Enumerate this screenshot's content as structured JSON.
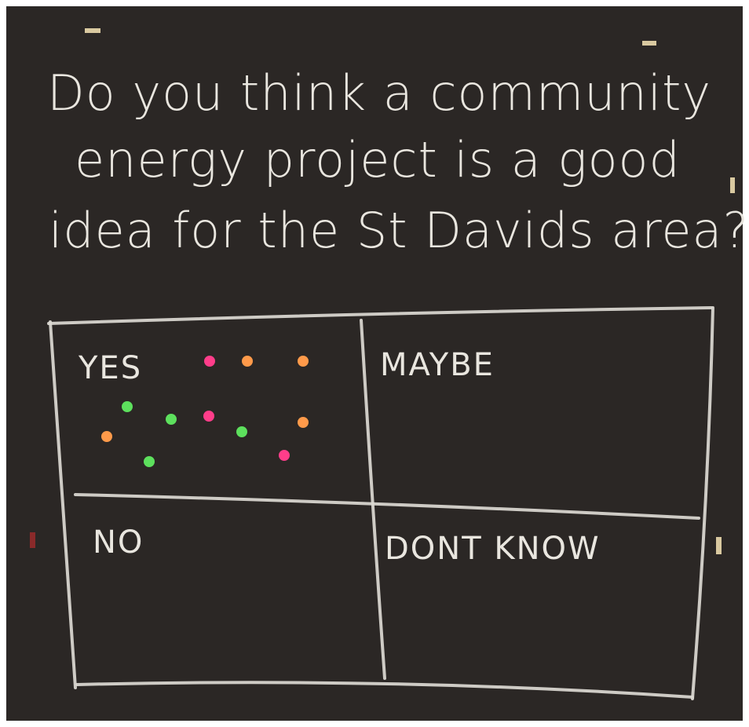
{
  "question": {
    "lines": [
      "Do you think a community",
      "energy project is a good",
      "idea for the St Davids area?"
    ]
  },
  "grid": {
    "cells": [
      "YES",
      "MAYBE",
      "NO",
      "DONT KNOW"
    ]
  }
}
